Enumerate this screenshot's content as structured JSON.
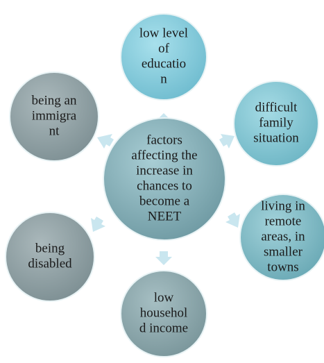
{
  "center": {
    "lines": [
      "factors",
      "affecting the",
      "increase in",
      "chances to",
      "become a",
      "NEET"
    ]
  },
  "nodes": [
    {
      "lines": [
        "low level",
        "of",
        "educatio",
        "n"
      ]
    },
    {
      "lines": [
        "difficult",
        "family",
        "situation"
      ]
    },
    {
      "lines": [
        "living in",
        "remote",
        "areas, in",
        "smaller",
        "towns"
      ]
    },
    {
      "lines": [
        "low",
        "househol",
        "d income"
      ]
    },
    {
      "lines": [
        "being",
        "disabled"
      ]
    },
    {
      "lines": [
        "being an",
        "immigra",
        "nt"
      ]
    }
  ]
}
